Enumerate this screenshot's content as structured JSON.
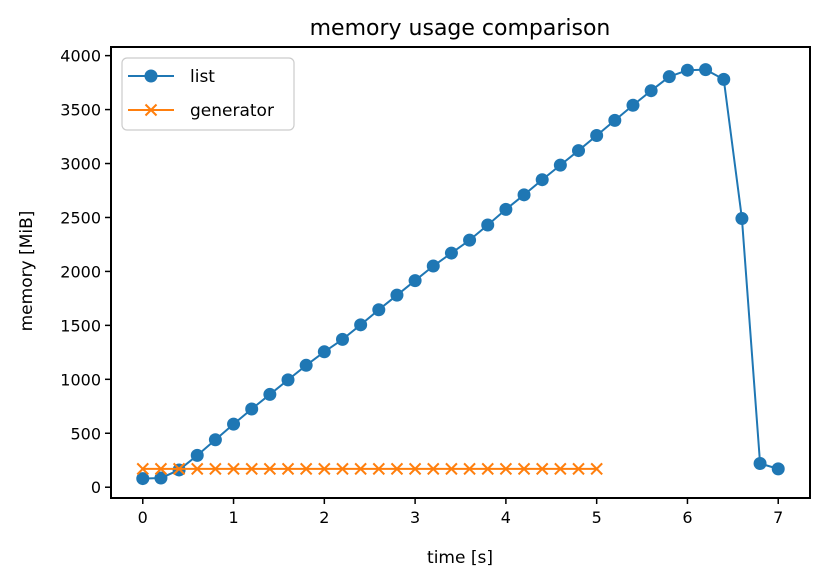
{
  "chart_data": {
    "type": "line",
    "title": "memory usage comparison",
    "xlabel": "time [s]",
    "ylabel": "memory [MiB]",
    "xlim": [
      -0.35,
      7.35
    ],
    "ylim": [
      -100,
      4080
    ],
    "xticks": [
      0,
      1,
      2,
      3,
      4,
      5,
      6,
      7
    ],
    "yticks": [
      0,
      500,
      1000,
      1500,
      2000,
      2500,
      3000,
      3500,
      4000
    ],
    "grid": false,
    "legend": "top-left",
    "series": [
      {
        "name": "list",
        "color": "#1f77b4",
        "marker": "circle",
        "x": [
          0.0,
          0.2,
          0.4,
          0.6,
          0.8,
          1.0,
          1.2,
          1.4,
          1.6,
          1.8,
          2.0,
          2.2,
          2.4,
          2.6,
          2.8,
          3.0,
          3.2,
          3.4,
          3.6,
          3.8,
          4.0,
          4.2,
          4.4,
          4.6,
          4.8,
          5.0,
          5.2,
          5.4,
          5.6,
          5.8,
          6.0,
          6.2,
          6.4,
          6.6,
          6.8,
          7.0
        ],
        "y": [
          80,
          85,
          160,
          295,
          440,
          585,
          725,
          860,
          995,
          1130,
          1255,
          1370,
          1505,
          1645,
          1780,
          1915,
          2050,
          2170,
          2290,
          2430,
          2575,
          2710,
          2850,
          2985,
          3120,
          3260,
          3400,
          3540,
          3675,
          3805,
          3865,
          3870,
          3780,
          2490,
          220,
          170
        ]
      },
      {
        "name": "generator",
        "color": "#ff7f0e",
        "marker": "x",
        "x": [
          0.0,
          0.2,
          0.4,
          0.6,
          0.8,
          1.0,
          1.2,
          1.4,
          1.6,
          1.8,
          2.0,
          2.2,
          2.4,
          2.6,
          2.8,
          3.0,
          3.2,
          3.4,
          3.6,
          3.8,
          4.0,
          4.2,
          4.4,
          4.6,
          4.8,
          5.0
        ],
        "y": [
          170,
          170,
          170,
          170,
          170,
          170,
          170,
          170,
          170,
          170,
          170,
          170,
          170,
          170,
          170,
          170,
          170,
          170,
          170,
          170,
          170,
          170,
          170,
          170,
          170,
          170
        ]
      }
    ]
  }
}
